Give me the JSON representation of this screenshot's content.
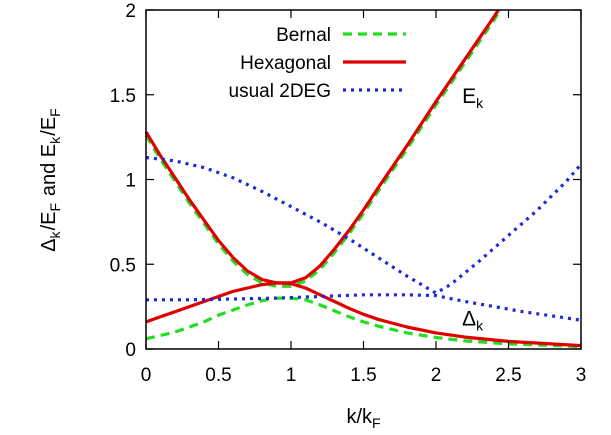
{
  "chart_data": {
    "type": "line",
    "xlabel": {
      "main": "k/k",
      "sub": "F"
    },
    "ylabel": {
      "parts": [
        {
          "text": "Δ",
          "sub": "k"
        },
        {
          "text": "/E",
          "sub": "F"
        },
        {
          "text": " and E",
          "sub": "k"
        },
        {
          "text": "/E",
          "sub": "F"
        }
      ]
    },
    "xlim": [
      0,
      3
    ],
    "ylim": [
      0,
      2
    ],
    "xticks": [
      0,
      0.5,
      1,
      1.5,
      2,
      2.5,
      3
    ],
    "xtick_labels": [
      "0",
      "0.5",
      "1",
      "1.5",
      "2",
      "2.5",
      "3"
    ],
    "yticks": [
      0,
      0.5,
      1,
      1.5,
      2
    ],
    "ytick_labels": [
      "0",
      "0.5",
      "1",
      "1.5",
      "2"
    ],
    "grid": false,
    "legend_position": "top-left",
    "annotations": [
      {
        "text": "E",
        "sub": "k",
        "x": 2.18,
        "y": 1.45
      },
      {
        "text": "Δ",
        "sub": "k",
        "x": 2.18,
        "y": 0.14
      }
    ],
    "series": [
      {
        "name": "Bernal",
        "color": "#22dd22",
        "dash": "9,6",
        "curves": [
          {
            "points": [
              [
                0,
                1.26
              ],
              [
                0.1,
                1.12
              ],
              [
                0.2,
                0.99
              ],
              [
                0.3,
                0.86
              ],
              [
                0.4,
                0.74
              ],
              [
                0.5,
                0.62
              ],
              [
                0.6,
                0.52
              ],
              [
                0.7,
                0.44
              ],
              [
                0.8,
                0.39
              ],
              [
                0.9,
                0.37
              ],
              [
                1.0,
                0.37
              ],
              [
                1.1,
                0.4
              ],
              [
                1.2,
                0.47
              ],
              [
                1.3,
                0.57
              ],
              [
                1.4,
                0.68
              ],
              [
                1.5,
                0.8
              ],
              [
                1.6,
                0.93
              ],
              [
                1.8,
                1.18
              ],
              [
                2.0,
                1.44
              ],
              [
                2.2,
                1.69
              ],
              [
                2.4,
                1.94
              ],
              [
                2.44,
                2.0
              ]
            ]
          },
          {
            "points": [
              [
                0,
                0.06
              ],
              [
                0.1,
                0.08
              ],
              [
                0.2,
                0.1
              ],
              [
                0.3,
                0.13
              ],
              [
                0.4,
                0.16
              ],
              [
                0.5,
                0.2
              ],
              [
                0.6,
                0.23
              ],
              [
                0.7,
                0.26
              ],
              [
                0.8,
                0.285
              ],
              [
                0.9,
                0.3
              ],
              [
                1.0,
                0.3
              ],
              [
                1.1,
                0.29
              ],
              [
                1.2,
                0.26
              ],
              [
                1.3,
                0.225
              ],
              [
                1.4,
                0.19
              ],
              [
                1.5,
                0.16
              ],
              [
                1.6,
                0.135
              ],
              [
                1.8,
                0.095
              ],
              [
                2.0,
                0.068
              ],
              [
                2.2,
                0.048
              ],
              [
                2.5,
                0.03
              ],
              [
                3.0,
                0.015
              ]
            ]
          }
        ]
      },
      {
        "name": "Hexagonal",
        "color": "#e00000",
        "dash": "",
        "curves": [
          {
            "points": [
              [
                0,
                1.28
              ],
              [
                0.1,
                1.14
              ],
              [
                0.2,
                1.01
              ],
              [
                0.3,
                0.88
              ],
              [
                0.4,
                0.76
              ],
              [
                0.5,
                0.64
              ],
              [
                0.6,
                0.54
              ],
              [
                0.7,
                0.46
              ],
              [
                0.8,
                0.41
              ],
              [
                0.9,
                0.39
              ],
              [
                1.0,
                0.39
              ],
              [
                1.1,
                0.42
              ],
              [
                1.2,
                0.49
              ],
              [
                1.3,
                0.59
              ],
              [
                1.4,
                0.7
              ],
              [
                1.5,
                0.82
              ],
              [
                1.6,
                0.95
              ],
              [
                1.8,
                1.2
              ],
              [
                2.0,
                1.46
              ],
              [
                2.2,
                1.71
              ],
              [
                2.4,
                1.96
              ],
              [
                2.43,
                2.0
              ]
            ]
          },
          {
            "points": [
              [
                0,
                0.16
              ],
              [
                0.1,
                0.19
              ],
              [
                0.2,
                0.22
              ],
              [
                0.3,
                0.25
              ],
              [
                0.4,
                0.28
              ],
              [
                0.5,
                0.31
              ],
              [
                0.6,
                0.34
              ],
              [
                0.7,
                0.36
              ],
              [
                0.8,
                0.38
              ],
              [
                0.9,
                0.39
              ],
              [
                1.0,
                0.385
              ],
              [
                1.1,
                0.36
              ],
              [
                1.2,
                0.32
              ],
              [
                1.3,
                0.28
              ],
              [
                1.4,
                0.24
              ],
              [
                1.5,
                0.205
              ],
              [
                1.6,
                0.175
              ],
              [
                1.8,
                0.13
              ],
              [
                2.0,
                0.095
              ],
              [
                2.2,
                0.07
              ],
              [
                2.5,
                0.045
              ],
              [
                3.0,
                0.02
              ]
            ]
          }
        ]
      },
      {
        "name": "usual 2DEG",
        "color": "#1a2ad8",
        "dash": "3,5",
        "curves": [
          {
            "points": [
              [
                0,
                1.13
              ],
              [
                0.2,
                1.11
              ],
              [
                0.4,
                1.07
              ],
              [
                0.6,
                1.01
              ],
              [
                0.8,
                0.93
              ],
              [
                1.0,
                0.84
              ],
              [
                1.2,
                0.75
              ],
              [
                1.4,
                0.65
              ],
              [
                1.6,
                0.54
              ],
              [
                1.8,
                0.43
              ],
              [
                1.9,
                0.38
              ],
              [
                2.0,
                0.33
              ],
              [
                2.1,
                0.38
              ],
              [
                2.3,
                0.52
              ],
              [
                2.5,
                0.67
              ],
              [
                2.7,
                0.82
              ],
              [
                2.9,
                0.99
              ],
              [
                3.0,
                1.09
              ]
            ]
          },
          {
            "points": [
              [
                0,
                0.29
              ],
              [
                0.3,
                0.29
              ],
              [
                0.6,
                0.295
              ],
              [
                0.9,
                0.3
              ],
              [
                1.2,
                0.31
              ],
              [
                1.5,
                0.32
              ],
              [
                1.8,
                0.32
              ],
              [
                2.0,
                0.315
              ],
              [
                2.2,
                0.28
              ],
              [
                2.4,
                0.25
              ],
              [
                2.6,
                0.22
              ],
              [
                2.8,
                0.195
              ],
              [
                3.0,
                0.17
              ]
            ]
          }
        ]
      }
    ]
  }
}
